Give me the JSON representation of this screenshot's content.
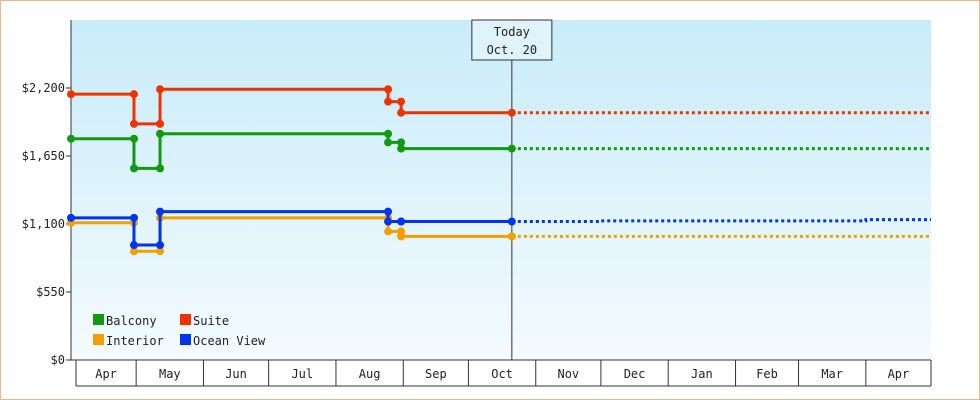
{
  "chart_data": {
    "type": "line",
    "title": "",
    "xlabel": "",
    "ylabel": "",
    "ylim": [
      0,
      2750
    ],
    "yticks": [
      {
        "value": 0,
        "label": "$0"
      },
      {
        "value": 550,
        "label": "$550"
      },
      {
        "value": 1100,
        "label": "$1,100"
      },
      {
        "value": 1650,
        "label": "$1,650"
      },
      {
        "value": 2200,
        "label": "$2,200"
      }
    ],
    "month_labels": [
      "Apr",
      "May",
      "Jun",
      "Jul",
      "Aug",
      "Sep",
      "Oct",
      "Nov",
      "Dec",
      "Jan",
      "Feb",
      "Mar",
      "Apr"
    ],
    "xlim": [
      "2023-03-31",
      "2024-04-30"
    ],
    "month_boundaries": [
      "2023-03-31",
      "2023-04-30",
      "2023-05-31",
      "2023-06-30",
      "2023-07-31",
      "2023-08-31",
      "2023-09-30",
      "2023-10-31",
      "2023-11-30",
      "2023-12-31",
      "2024-01-31",
      "2024-02-29",
      "2024-03-31",
      "2024-04-30"
    ],
    "today": {
      "date": "2023-10-20",
      "line1": "Today",
      "line2": "Oct. 20"
    },
    "grid": false,
    "legend_position": "bottom-left",
    "series": [
      {
        "name": "Balcony",
        "color": "#119911",
        "points": [
          [
            "2023-03-31",
            1790
          ],
          [
            "2023-04-29",
            1790
          ],
          [
            "2023-04-29",
            1550
          ],
          [
            "2023-05-11",
            1550
          ],
          [
            "2023-05-11",
            1830
          ],
          [
            "2023-08-24",
            1830
          ],
          [
            "2023-08-24",
            1760
          ],
          [
            "2023-08-30",
            1760
          ],
          [
            "2023-08-30",
            1710
          ],
          [
            "2023-10-20",
            1710
          ]
        ],
        "forecast": [
          [
            "2023-10-20",
            1710
          ],
          [
            "2024-04-30",
            1710
          ]
        ]
      },
      {
        "name": "Suite",
        "color": "#ee3300",
        "points": [
          [
            "2023-03-31",
            2150
          ],
          [
            "2023-04-29",
            2150
          ],
          [
            "2023-04-29",
            1910
          ],
          [
            "2023-05-11",
            1910
          ],
          [
            "2023-05-11",
            2190
          ],
          [
            "2023-08-24",
            2190
          ],
          [
            "2023-08-24",
            2090
          ],
          [
            "2023-08-30",
            2090
          ],
          [
            "2023-08-30",
            2000
          ],
          [
            "2023-10-20",
            2000
          ]
        ],
        "forecast": [
          [
            "2023-10-20",
            2000
          ],
          [
            "2024-04-30",
            2000
          ]
        ]
      },
      {
        "name": "Interior",
        "color": "#f0a000",
        "points": [
          [
            "2023-03-31",
            1110
          ],
          [
            "2023-04-29",
            1110
          ],
          [
            "2023-04-29",
            880
          ],
          [
            "2023-05-11",
            880
          ],
          [
            "2023-05-11",
            1150
          ],
          [
            "2023-08-24",
            1150
          ],
          [
            "2023-08-24",
            1040
          ],
          [
            "2023-08-30",
            1040
          ],
          [
            "2023-08-30",
            1000
          ],
          [
            "2023-10-20",
            1000
          ]
        ],
        "forecast": [
          [
            "2023-10-20",
            1000
          ],
          [
            "2024-04-30",
            1000
          ]
        ]
      },
      {
        "name": "Ocean View",
        "color": "#0033ee",
        "points": [
          [
            "2023-03-31",
            1150
          ],
          [
            "2023-04-29",
            1150
          ],
          [
            "2023-04-29",
            930
          ],
          [
            "2023-05-11",
            930
          ],
          [
            "2023-05-11",
            1200
          ],
          [
            "2023-08-24",
            1200
          ],
          [
            "2023-08-24",
            1120
          ],
          [
            "2023-08-30",
            1120
          ],
          [
            "2023-08-30",
            1120
          ],
          [
            "2023-10-20",
            1120
          ]
        ],
        "forecast": [
          [
            "2023-10-20",
            1120
          ],
          [
            "2023-11-30",
            1120
          ],
          [
            "2023-11-30",
            1125
          ],
          [
            "2024-03-31",
            1125
          ],
          [
            "2024-03-31",
            1135
          ],
          [
            "2024-04-30",
            1135
          ]
        ]
      }
    ],
    "legend": [
      {
        "name": "Balcony",
        "color": "#119911"
      },
      {
        "name": "Suite",
        "color": "#ee3300"
      },
      {
        "name": "Interior",
        "color": "#f0a000"
      },
      {
        "name": "Ocean View",
        "color": "#0033ee"
      }
    ],
    "background_gradient": [
      "#c8ecf9",
      "#f4fbfe"
    ]
  }
}
